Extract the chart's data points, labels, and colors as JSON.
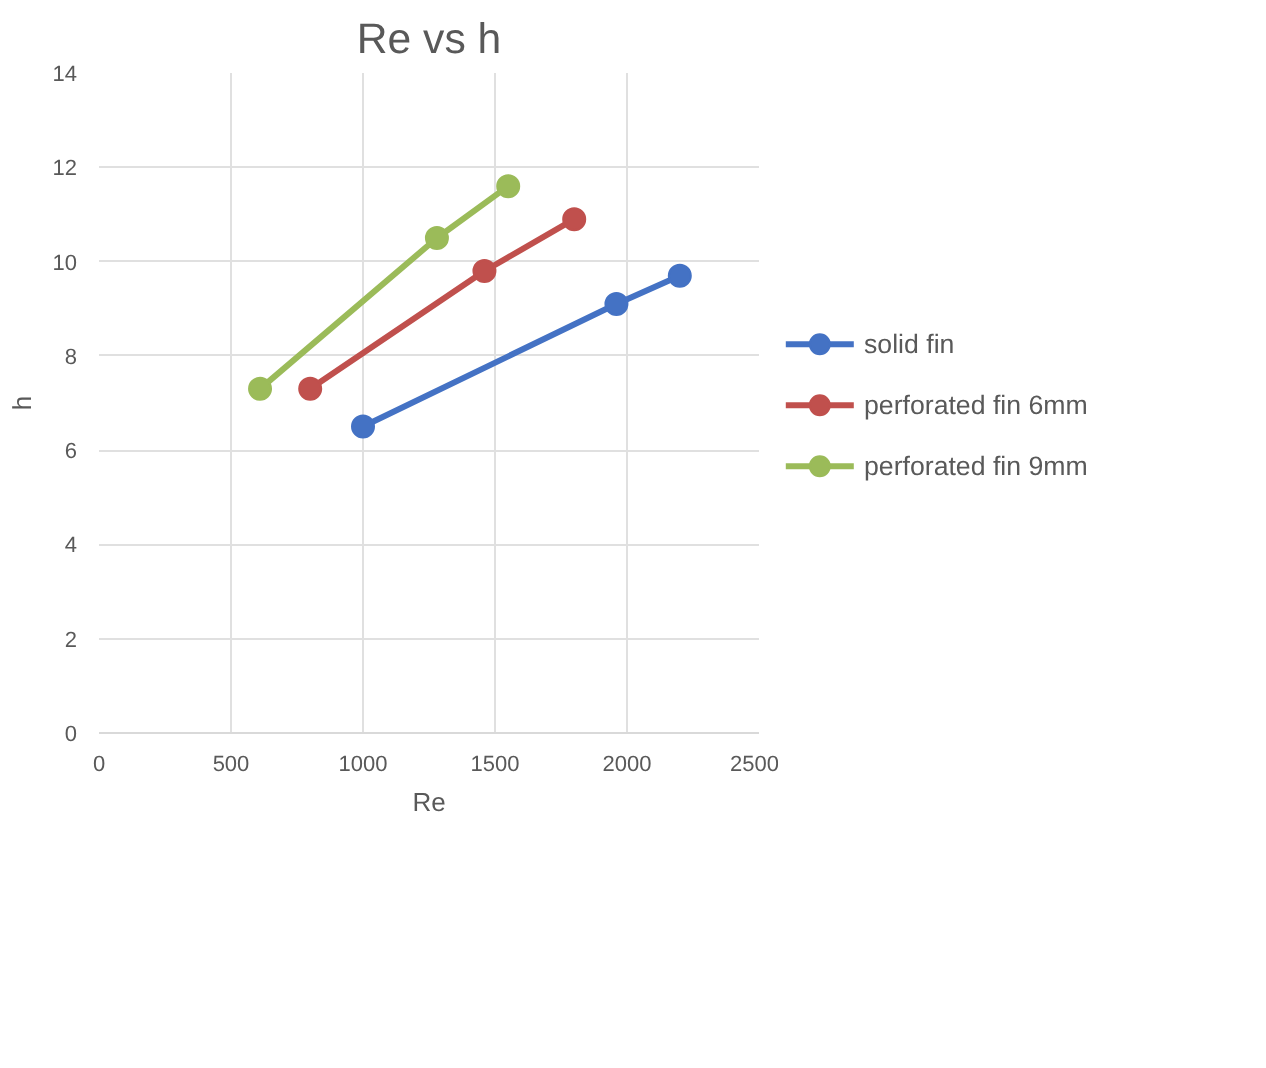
{
  "chart_data": {
    "type": "line",
    "title": "Re vs h",
    "xlabel": "Re",
    "ylabel": "h",
    "xlim": [
      0,
      2500
    ],
    "xticks": [
      0,
      500,
      1000,
      1500,
      2000,
      2500
    ],
    "ylim": [
      0,
      14
    ],
    "yticks": [
      0,
      2,
      4,
      6,
      8,
      10,
      12,
      14
    ],
    "grid": true,
    "legend": "right",
    "marker": "circle",
    "series": [
      {
        "name": "solid fin",
        "color": "#4472c4",
        "x": [
          1000,
          1960,
          2200
        ],
        "values": [
          6.5,
          9.1,
          9.7
        ]
      },
      {
        "name": "perforated fin 6mm",
        "color": "#c0504d",
        "x": [
          800,
          1460,
          1800
        ],
        "values": [
          7.3,
          9.8,
          10.9
        ]
      },
      {
        "name": "perforated fin 9mm",
        "color": "#9bbb59",
        "x": [
          610,
          1280,
          1550
        ],
        "values": [
          7.3,
          10.5,
          11.6
        ]
      }
    ]
  }
}
